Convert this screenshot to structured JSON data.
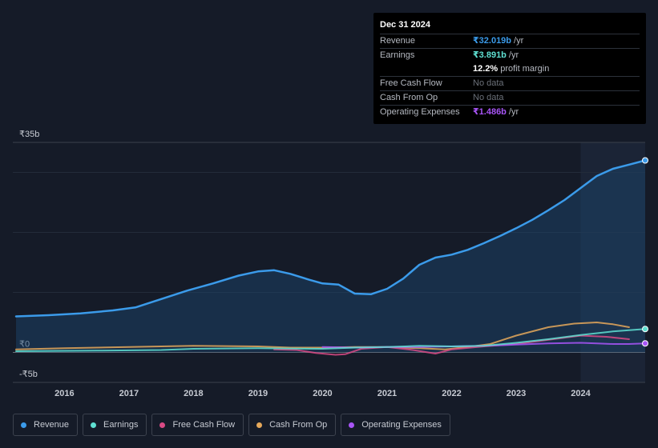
{
  "tooltip": {
    "date": "Dec 31 2024",
    "rows": [
      {
        "label": "Revenue",
        "value": "₹32.019b",
        "unit": "/yr",
        "color": "#3b9bea"
      },
      {
        "label": "Earnings",
        "value": "₹3.891b",
        "unit": "/yr",
        "color": "#5fe0d2"
      },
      {
        "label": "",
        "value": "12.2%",
        "unit": "profit margin",
        "color": "#ffffff"
      },
      {
        "label": "Free Cash Flow",
        "value": "No data",
        "unit": "",
        "color": ""
      },
      {
        "label": "Cash From Op",
        "value": "No data",
        "unit": "",
        "color": ""
      },
      {
        "label": "Operating Expenses",
        "value": "₹1.486b",
        "unit": "/yr",
        "color": "#a855f7"
      }
    ]
  },
  "legend": [
    {
      "label": "Revenue",
      "color": "#3b9bea"
    },
    {
      "label": "Earnings",
      "color": "#5fe0d2"
    },
    {
      "label": "Free Cash Flow",
      "color": "#d94a85"
    },
    {
      "label": "Cash From Op",
      "color": "#e5a85a"
    },
    {
      "label": "Operating Expenses",
      "color": "#a855f7"
    }
  ],
  "chart_data": {
    "type": "line",
    "title": "",
    "xlabel": "",
    "ylabel": "",
    "y_ticks": [
      {
        "value": 35,
        "label": "₹35b"
      },
      {
        "value": 0,
        "label": "₹0"
      },
      {
        "value": -5,
        "label": "-₹5b"
      }
    ],
    "ylim": [
      -5,
      35
    ],
    "xlim": [
      2015.2,
      2025.0
    ],
    "x_ticks": [
      "2016",
      "2017",
      "2018",
      "2019",
      "2020",
      "2021",
      "2022",
      "2023",
      "2024"
    ],
    "x_tick_values": [
      2016,
      2017,
      2018,
      2019,
      2020,
      2021,
      2022,
      2023,
      2024
    ],
    "forecast_start": 2024.0,
    "series": [
      {
        "name": "Revenue",
        "color": "#3b9bea",
        "fill": true,
        "x": [
          2015.25,
          2015.75,
          2016.25,
          2016.75,
          2017.1,
          2017.5,
          2017.9,
          2018.3,
          2018.7,
          2019.0,
          2019.25,
          2019.5,
          2019.8,
          2020.0,
          2020.25,
          2020.5,
          2020.75,
          2021.0,
          2021.25,
          2021.5,
          2021.75,
          2022.0,
          2022.25,
          2022.5,
          2022.75,
          2023.0,
          2023.25,
          2023.5,
          2023.75,
          2024.0,
          2024.25,
          2024.5,
          2024.75,
          2025.0
        ],
        "y": [
          6.0,
          6.2,
          6.5,
          7.0,
          7.5,
          8.9,
          10.3,
          11.5,
          12.8,
          13.5,
          13.7,
          13.1,
          12.1,
          11.5,
          11.3,
          9.8,
          9.7,
          10.6,
          12.3,
          14.6,
          15.8,
          16.3,
          17.1,
          18.2,
          19.4,
          20.7,
          22.1,
          23.7,
          25.4,
          27.4,
          29.4,
          30.6,
          31.3,
          32.0
        ]
      },
      {
        "name": "Earnings",
        "color": "#5fe0d2",
        "fill": false,
        "x": [
          2015.25,
          2016.5,
          2017.5,
          2018.0,
          2019.0,
          2020.0,
          2020.5,
          2021.0,
          2021.5,
          2022.0,
          2022.5,
          2023.0,
          2023.5,
          2024.0,
          2024.5,
          2025.0
        ],
        "y": [
          0.2,
          0.3,
          0.4,
          0.6,
          0.7,
          0.6,
          0.8,
          0.9,
          1.1,
          1.0,
          1.1,
          1.6,
          2.2,
          2.9,
          3.5,
          3.9
        ]
      },
      {
        "name": "Free Cash Flow",
        "color": "#d94a85",
        "fill": false,
        "x": [
          2019.25,
          2019.6,
          2019.9,
          2020.2,
          2020.35,
          2020.6,
          2021.0,
          2021.4,
          2021.75,
          2022.0,
          2022.5,
          2023.0,
          2023.5,
          2024.0,
          2024.4,
          2024.75
        ],
        "y": [
          0.5,
          0.4,
          -0.1,
          -0.4,
          -0.3,
          0.6,
          0.9,
          0.4,
          -0.2,
          0.5,
          1.0,
          1.4,
          2.1,
          2.8,
          2.6,
          2.2
        ]
      },
      {
        "name": "Cash From Op",
        "color": "#e5a85a",
        "fill": false,
        "x": [
          2015.25,
          2016.0,
          2017.0,
          2018.0,
          2019.0,
          2019.5,
          2020.0,
          2020.5,
          2021.0,
          2021.5,
          2021.9,
          2022.25,
          2022.6,
          2023.0,
          2023.5,
          2023.9,
          2024.25,
          2024.5,
          2024.75
        ],
        "y": [
          0.5,
          0.7,
          0.9,
          1.1,
          1.0,
          0.8,
          0.8,
          0.9,
          0.9,
          0.7,
          0.5,
          0.9,
          1.4,
          2.8,
          4.2,
          4.8,
          5.0,
          4.7,
          4.2
        ]
      },
      {
        "name": "Operating Expenses",
        "color": "#a855f7",
        "fill": false,
        "x": [
          2020.0,
          2020.5,
          2021.0,
          2021.5,
          2022.0,
          2022.5,
          2023.0,
          2023.5,
          2024.0,
          2024.25,
          2024.5,
          2024.75,
          2025.0
        ],
        "y": [
          0.9,
          0.8,
          0.9,
          0.9,
          1.0,
          1.1,
          1.3,
          1.5,
          1.6,
          1.5,
          1.4,
          1.4,
          1.5
        ]
      }
    ]
  }
}
